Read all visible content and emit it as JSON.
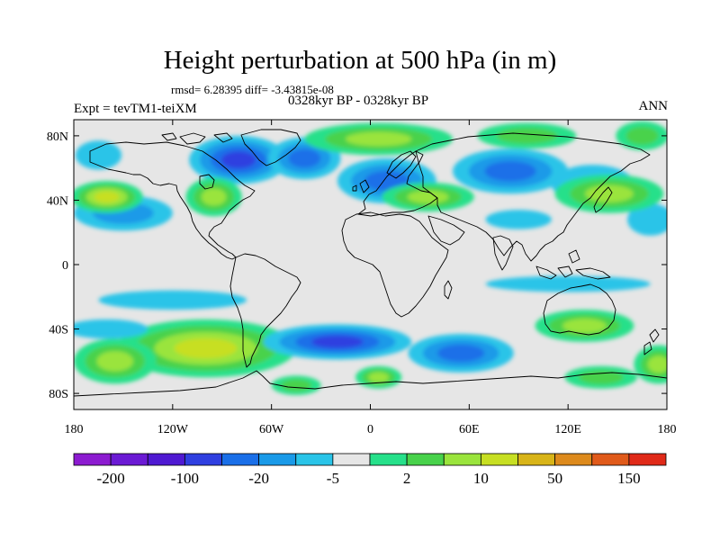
{
  "plot": {
    "title": "Height perturbation at 500 hPa (in m)",
    "stats": "rmsd= 6.28395 diff= -3.43815e-08",
    "experiment": "Expt = tevTM1-teiXM",
    "period": "0328kyr BP - 0328kyr BP",
    "season": "ANN"
  },
  "map": {
    "projection": "cylindrical-equidistant",
    "lon_range": [
      -180,
      180
    ],
    "lat_range": [
      -90,
      90
    ],
    "x_ticks": [
      {
        "value": -180,
        "label": "180"
      },
      {
        "value": -120,
        "label": "120W"
      },
      {
        "value": -60,
        "label": "60W"
      },
      {
        "value": 0,
        "label": "0"
      },
      {
        "value": 60,
        "label": "60E"
      },
      {
        "value": 120,
        "label": "120E"
      },
      {
        "value": 180,
        "label": "180"
      }
    ],
    "y_ticks": [
      {
        "value": 80,
        "label": "80N"
      },
      {
        "value": 40,
        "label": "40N"
      },
      {
        "value": 0,
        "label": "0"
      },
      {
        "value": -40,
        "label": "40S"
      },
      {
        "value": -80,
        "label": "80S"
      }
    ],
    "background_color": "#e6e6e6",
    "coastline_color": "#000000",
    "anomalies": [
      {
        "lon": -80,
        "lat": 65,
        "rlon": 30,
        "rlat": 15,
        "level": -12
      },
      {
        "lon": -40,
        "lat": 66,
        "rlon": 22,
        "rlat": 13,
        "level": -8
      },
      {
        "lon": 10,
        "lat": 52,
        "rlon": 30,
        "rlat": 14,
        "level": -10
      },
      {
        "lon": 85,
        "lat": 58,
        "rlon": 35,
        "rlat": 14,
        "level": -8
      },
      {
        "lon": 135,
        "lat": 50,
        "rlon": 25,
        "rlat": 12,
        "level": -4
      },
      {
        "lon": -150,
        "lat": 32,
        "rlon": 30,
        "rlat": 11,
        "level": -6
      },
      {
        "lon": 170,
        "lat": 28,
        "rlon": 14,
        "rlat": 10,
        "level": -4
      },
      {
        "lon": -165,
        "lat": 68,
        "rlon": 14,
        "rlat": 9,
        "level": -4
      },
      {
        "lon": 90,
        "lat": 28,
        "rlon": 20,
        "rlat": 6,
        "level": -3
      },
      {
        "lon": -160,
        "lat": 42,
        "rlon": 22,
        "rlat": 10,
        "level": 12
      },
      {
        "lon": -95,
        "lat": 42,
        "rlon": 17,
        "rlat": 12,
        "level": 9
      },
      {
        "lon": 35,
        "lat": 42,
        "rlon": 28,
        "rlat": 9,
        "level": 9
      },
      {
        "lon": 145,
        "lat": 44,
        "rlon": 33,
        "rlat": 12,
        "level": 9
      },
      {
        "lon": 5,
        "lat": 78,
        "rlon": 45,
        "rlat": 10,
        "level": 8
      },
      {
        "lon": 95,
        "lat": 80,
        "rlon": 30,
        "rlat": 8,
        "level": 5
      },
      {
        "lon": 165,
        "lat": 80,
        "rlon": 16,
        "rlat": 9,
        "level": 5
      },
      {
        "lon": -100,
        "lat": -52,
        "rlon": 55,
        "rlat": 18,
        "level": 12
      },
      {
        "lon": -155,
        "lat": -60,
        "rlon": 25,
        "rlat": 14,
        "level": 8
      },
      {
        "lon": 5,
        "lat": -70,
        "rlon": 14,
        "rlat": 7,
        "level": 9
      },
      {
        "lon": -45,
        "lat": -75,
        "rlon": 15,
        "rlat": 6,
        "level": 7
      },
      {
        "lon": 130,
        "lat": -38,
        "rlon": 30,
        "rlat": 10,
        "level": 8
      },
      {
        "lon": 175,
        "lat": -62,
        "rlon": 15,
        "rlat": 12,
        "level": 8
      },
      {
        "lon": 140,
        "lat": -70,
        "rlon": 22,
        "rlat": 7,
        "level": 6
      },
      {
        "lon": -20,
        "lat": -48,
        "rlon": 45,
        "rlat": 11,
        "level": -12
      },
      {
        "lon": 55,
        "lat": -55,
        "rlon": 32,
        "rlat": 12,
        "level": -10
      },
      {
        "lon": -120,
        "lat": -22,
        "rlon": 45,
        "rlat": 6,
        "level": -4
      },
      {
        "lon": 120,
        "lat": -12,
        "rlon": 50,
        "rlat": 5,
        "level": -3
      },
      {
        "lon": -160,
        "lat": -40,
        "rlon": 25,
        "rlat": 6,
        "level": -4
      }
    ]
  },
  "colorbar": {
    "colors": [
      "#8c1bd0",
      "#6b1ad4",
      "#4f19d2",
      "#2f3fe0",
      "#1a6fe8",
      "#1a9ae8",
      "#2ac4e8",
      "#e6e6e6",
      "#26e08a",
      "#48d24b",
      "#9ae43c",
      "#c7df22",
      "#d8b418",
      "#dd8a1c",
      "#e05a1a",
      "#e02a18"
    ],
    "labels": [
      {
        "after_box": 1,
        "text": "-200"
      },
      {
        "after_box": 3,
        "text": "-100"
      },
      {
        "after_box": 5,
        "text": "-20"
      },
      {
        "after_box": 7,
        "text": "-5"
      },
      {
        "after_box": 9,
        "text": "2"
      },
      {
        "after_box": 11,
        "text": "10"
      },
      {
        "after_box": 13,
        "text": "50"
      },
      {
        "after_box": 15,
        "text": "150"
      }
    ]
  }
}
